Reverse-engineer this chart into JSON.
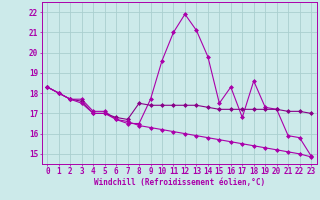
{
  "xlabel": "Windchill (Refroidissement éolien,°C)",
  "background_color": "#cceaea",
  "grid_color": "#aacfcf",
  "line_color": "#aa00aa",
  "line_color2": "#880088",
  "x_ticks": [
    0,
    1,
    2,
    3,
    4,
    5,
    6,
    7,
    8,
    9,
    10,
    11,
    12,
    13,
    14,
    15,
    16,
    17,
    18,
    19,
    20,
    21,
    22,
    23
  ],
  "ylim": [
    14.5,
    22.5
  ],
  "xlim": [
    -0.5,
    23.5
  ],
  "series1_x": [
    0,
    1,
    2,
    3,
    4,
    5,
    6,
    7,
    8,
    9,
    10,
    11,
    12,
    13,
    14,
    15,
    16,
    17,
    18,
    19,
    20,
    21,
    22,
    23
  ],
  "series1_y": [
    18.3,
    18.0,
    17.7,
    17.7,
    17.1,
    17.1,
    16.7,
    16.5,
    16.5,
    17.7,
    19.6,
    21.0,
    21.9,
    21.1,
    19.8,
    17.5,
    18.3,
    16.8,
    18.6,
    17.3,
    17.2,
    15.9,
    15.8,
    14.9
  ],
  "series2_x": [
    0,
    1,
    2,
    3,
    4,
    5,
    6,
    7,
    8,
    9,
    10,
    11,
    12,
    13,
    14,
    15,
    16,
    17,
    18,
    19,
    20,
    21,
    22,
    23
  ],
  "series2_y": [
    18.3,
    18.0,
    17.7,
    17.6,
    17.0,
    17.0,
    16.8,
    16.7,
    17.5,
    17.4,
    17.4,
    17.4,
    17.4,
    17.4,
    17.3,
    17.2,
    17.2,
    17.2,
    17.2,
    17.2,
    17.2,
    17.1,
    17.1,
    17.0
  ],
  "series3_x": [
    0,
    1,
    2,
    3,
    4,
    5,
    6,
    7,
    8,
    9,
    10,
    11,
    12,
    13,
    14,
    15,
    16,
    17,
    18,
    19,
    20,
    21,
    22,
    23
  ],
  "series3_y": [
    18.3,
    18.0,
    17.7,
    17.5,
    17.0,
    17.0,
    16.7,
    16.6,
    16.4,
    16.3,
    16.2,
    16.1,
    16.0,
    15.9,
    15.8,
    15.7,
    15.6,
    15.5,
    15.4,
    15.3,
    15.2,
    15.1,
    15.0,
    14.85
  ],
  "yticks": [
    15,
    16,
    17,
    18,
    19,
    20,
    21,
    22
  ],
  "tick_fontsize": 5.5,
  "xlabel_fontsize": 5.5
}
